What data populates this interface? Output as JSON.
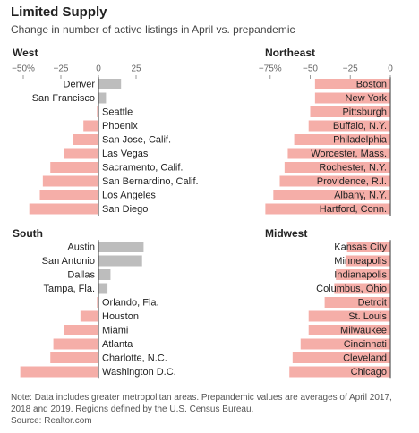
{
  "title": "Limited Supply",
  "subtitle": "Change in number of active listings in April vs. prepandemic",
  "note": "Note: Data includes greater metropolitan areas. Prepandemic values are averages of April 2017, 2018 and 2019. Regions defined by the U.S. Census Bureau.",
  "source": "Source: Realtor.com",
  "chart_data": [
    {
      "type": "bar",
      "orientation": "horizontal",
      "title": "West",
      "categories": [
        "Denver",
        "San Francisco",
        "Seattle",
        "Phoenix",
        "San Jose, Calif.",
        "Las Vegas",
        "Sacramento, Calif.",
        "San Bernardino, Calif.",
        "Los Angeles",
        "San Diego"
      ],
      "values": [
        15,
        5,
        -1,
        -10,
        -17,
        -23,
        -32,
        -37,
        -39,
        -46
      ],
      "color": "#f5aea8",
      "positive_color": "#bdbdbd",
      "xlim": [
        -55,
        30
      ],
      "xticks": [
        {
          "value": -50,
          "label": "−50%"
        },
        {
          "value": -25,
          "label": "−25"
        },
        0,
        25
      ]
    },
    {
      "type": "bar",
      "orientation": "horizontal",
      "title": "Northeast",
      "categories": [
        "Boston",
        "New York",
        "Pittsburgh",
        "Buffalo, N.Y.",
        "Philadelphia",
        "Worcester, Mass.",
        "Rochester, N.Y.",
        "Providence, R.I.",
        "Albany, N.Y.",
        "Hartford, Conn."
      ],
      "values": [
        -47,
        -47,
        -50,
        -51,
        -60,
        -64,
        -66,
        -69,
        -73,
        -78
      ],
      "color": "#f5aea8",
      "positive_color": "#bdbdbd",
      "xlim": [
        -80,
        0
      ],
      "xticks": [
        {
          "value": -75,
          "label": "−75%"
        },
        {
          "value": -50,
          "label": "−50"
        },
        {
          "value": -25,
          "label": "−25"
        },
        0
      ]
    },
    {
      "type": "bar",
      "orientation": "horizontal",
      "title": "South",
      "categories": [
        "Austin",
        "San Antonio",
        "Dallas",
        "Tampa, Fla.",
        "Orlando, Fla.",
        "Houston",
        "Miami",
        "Atlanta",
        "Charlotte, N.C.",
        "Washington D.C."
      ],
      "values": [
        30,
        29,
        8,
        6,
        -1,
        -12,
        -23,
        -30,
        -32,
        -52
      ],
      "color": "#f5aea8",
      "positive_color": "#bdbdbd",
      "xlim": [
        -55,
        30
      ]
    },
    {
      "type": "bar",
      "orientation": "horizontal",
      "title": "Midwest",
      "categories": [
        "Kansas City",
        "Minneapolis",
        "Indianapolis",
        "Columbus, Ohio",
        "Detroit",
        "St. Louis",
        "Milwaukee",
        "Cincinnati",
        "Cleveland",
        "Chicago"
      ],
      "values": [
        -27,
        -28,
        -34,
        -35,
        -41,
        -51,
        -51,
        -56,
        -61,
        -63
      ],
      "color": "#f5aea8",
      "positive_color": "#bdbdbd",
      "xlim": [
        -80,
        0
      ]
    }
  ]
}
